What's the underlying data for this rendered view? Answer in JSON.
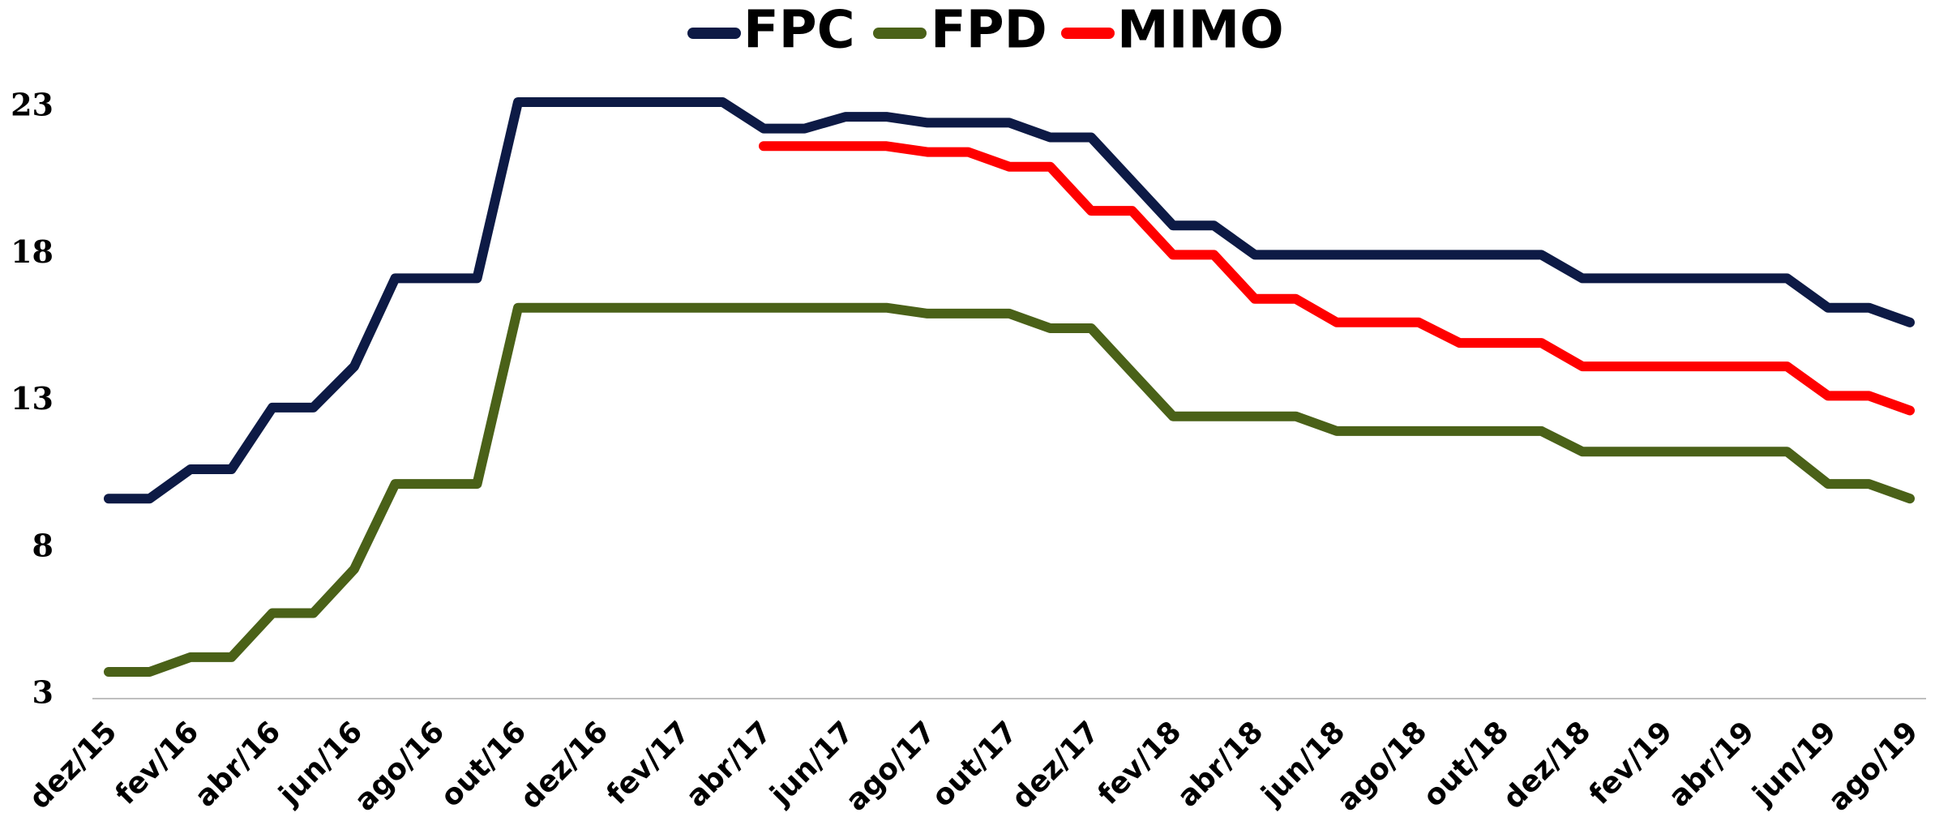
{
  "chart_data": {
    "type": "line",
    "categories": [
      "dez/15",
      null,
      "fev/16",
      null,
      "abr/16",
      null,
      "jun/16",
      null,
      "ago/16",
      null,
      "out/16",
      null,
      "dez/16",
      null,
      "fev/17",
      null,
      "abr/17",
      null,
      "jun/17",
      null,
      "ago/17",
      null,
      "out/17",
      null,
      "dez/17",
      null,
      "fev/18",
      null,
      "abr/18",
      null,
      "jun/18",
      null,
      "ago/18",
      null,
      "out/18",
      null,
      "dez/18",
      null,
      "fev/19",
      null,
      "abr/19",
      null,
      "jun/19",
      null,
      "ago/19"
    ],
    "series": [
      {
        "name": "FPC",
        "color": "#0d1a45",
        "values": [
          9.7,
          9.7,
          10.7,
          10.7,
          12.8,
          12.8,
          14.2,
          17.2,
          17.2,
          17.2,
          23.2,
          23.2,
          23.2,
          23.2,
          23.2,
          23.2,
          22.3,
          22.3,
          22.7,
          22.7,
          22.5,
          22.5,
          22.5,
          22.0,
          22.0,
          20.5,
          19.0,
          19.0,
          18.0,
          18.0,
          18.0,
          18.0,
          18.0,
          18.0,
          18.0,
          18.0,
          17.2,
          17.2,
          17.2,
          17.2,
          17.2,
          17.2,
          16.2,
          16.2,
          15.7
        ]
      },
      {
        "name": "FPD",
        "color": "#4a6118",
        "values": [
          3.8,
          3.8,
          4.3,
          4.3,
          5.8,
          5.8,
          7.3,
          10.2,
          10.2,
          10.2,
          16.2,
          16.2,
          16.2,
          16.2,
          16.2,
          16.2,
          16.2,
          16.2,
          16.2,
          16.2,
          16.0,
          16.0,
          16.0,
          15.5,
          15.5,
          14.0,
          12.5,
          12.5,
          12.5,
          12.5,
          12.0,
          12.0,
          12.0,
          12.0,
          12.0,
          12.0,
          11.3,
          11.3,
          11.3,
          11.3,
          11.3,
          11.3,
          10.2,
          10.2,
          9.7
        ]
      },
      {
        "name": "MIMO",
        "color": "#ff0000",
        "values": [
          null,
          null,
          null,
          null,
          null,
          null,
          null,
          null,
          null,
          null,
          null,
          null,
          null,
          null,
          null,
          null,
          21.7,
          21.7,
          21.7,
          21.7,
          21.5,
          21.5,
          21.0,
          21.0,
          19.5,
          19.5,
          18.0,
          18.0,
          16.5,
          16.5,
          15.7,
          15.7,
          15.7,
          15.0,
          15.0,
          15.0,
          14.2,
          14.2,
          14.2,
          14.2,
          14.2,
          14.2,
          13.2,
          13.2,
          12.7
        ]
      }
    ],
    "ylim": [
      3,
      24
    ],
    "yticks": [
      3,
      8,
      13,
      18,
      23
    ],
    "legend": "top"
  }
}
